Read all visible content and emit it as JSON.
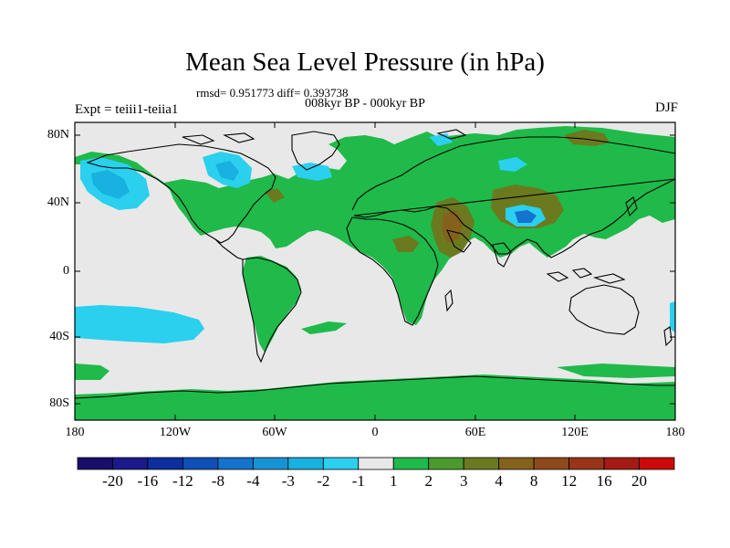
{
  "title": "Mean Sea Level Pressure (in hPa)",
  "stats": "rmsd= 0.951773 diff= 0.393738",
  "period": "008kyr BP - 000kyr BP",
  "experiment": "Expt = teiii1-teiia1",
  "season": "DJF",
  "lat_labels": [
    "80N",
    "40N",
    "0",
    "40S",
    "80S"
  ],
  "lon_labels": [
    "180",
    "120W",
    "60W",
    "0",
    "60E",
    "120E",
    "180"
  ],
  "colorbar": {
    "colors": [
      "#1a0d6b",
      "#1a1a8c",
      "#0b2f9e",
      "#0f4fb8",
      "#1473cc",
      "#1693d6",
      "#19b1e0",
      "#2ad0ee",
      "#e8e8e8",
      "#1fba4a",
      "#4a9a2c",
      "#6b7a1f",
      "#85621c",
      "#8f4a1a",
      "#9a3418",
      "#a51a14",
      "#cc0a0a"
    ],
    "labels": [
      "-20",
      "-16",
      "-12",
      "-8",
      "-4",
      "-3",
      "-2",
      "-1",
      "1",
      "2",
      "3",
      "4",
      "8",
      "12",
      "16",
      "20"
    ]
  }
}
